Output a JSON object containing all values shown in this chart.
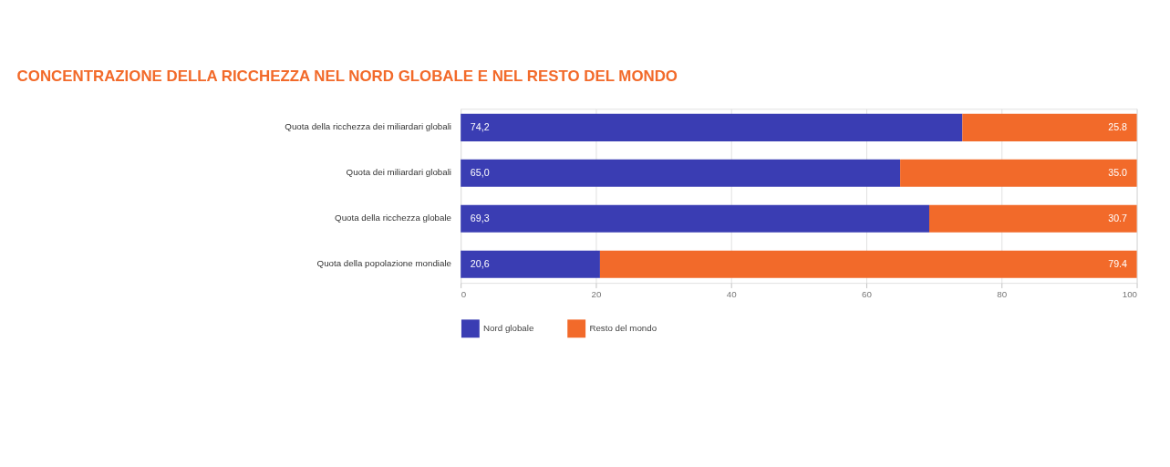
{
  "chart_data": {
    "type": "bar",
    "orientation": "horizontal",
    "stacked": true,
    "title": "CONCENTRAZIONE DELLA RICCHEZZA NEL NORD GLOBALE E NEL RESTO DEL MONDO",
    "categories": [
      "Quota della ricchezza dei miliardari globali",
      "Quota dei miliardari globali",
      "Quota della ricchezza globale",
      "Quota della popolazione mondiale"
    ],
    "series": [
      {
        "name": "Nord globale",
        "color": "#3a3db3",
        "values": [
          74.2,
          65.0,
          69.3,
          20.6
        ],
        "value_labels": [
          "74,2",
          "65,0",
          "69,3",
          "20,6"
        ]
      },
      {
        "name": "Resto del mondo",
        "color": "#f26a2a",
        "values": [
          25.8,
          35.0,
          30.7,
          79.4
        ],
        "value_labels": [
          "25.8",
          "35.0",
          "30.7",
          "79.4"
        ]
      }
    ],
    "xlim": [
      0,
      100
    ],
    "xticks": [
      0,
      20,
      40,
      60,
      80,
      100
    ],
    "grid": "x",
    "legend": "bottom"
  }
}
